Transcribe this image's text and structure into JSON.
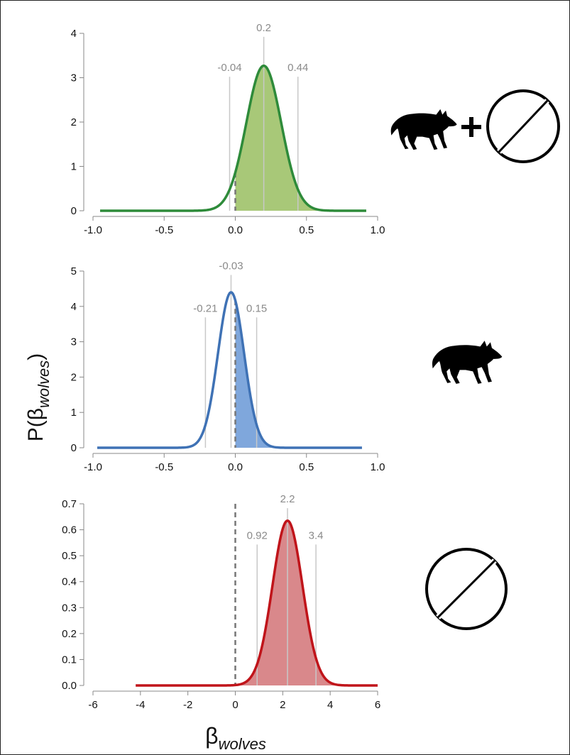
{
  "y_axis_title": {
    "symbol": "P(β",
    "subscript": "wolves",
    "close": ")"
  },
  "x_axis_title": {
    "symbol": "β",
    "subscript": "wolves"
  },
  "chart_data": [
    {
      "type": "area",
      "xlim": [
        -1.0,
        1.0
      ],
      "ylim": [
        0,
        4
      ],
      "x_ticks": [
        -1.0,
        -0.5,
        0.0,
        0.5,
        1.0
      ],
      "x_tick_labels": [
        "-1.0",
        "-0.5",
        "0.0",
        "0.5",
        "1.0"
      ],
      "y_ticks": [
        0,
        1,
        2,
        3,
        4
      ],
      "y_tick_labels": [
        "0",
        "1",
        "2",
        "3",
        "4"
      ],
      "curve": {
        "x_range": [
          -0.95,
          0.92
        ],
        "mean": 0.2,
        "peak": 3.27,
        "lower": -0.04,
        "upper": 0.44
      },
      "shade_from": 0,
      "reference_line": 0,
      "line_color": "#2e8b3a",
      "fill_color": "#a8c878",
      "annotations": [
        {
          "x": -0.04,
          "label": "-0.04",
          "level": 3.15
        },
        {
          "x": 0.2,
          "label": "0.2",
          "level": 4.05
        },
        {
          "x": 0.44,
          "label": "0.44",
          "level": 3.15
        }
      ],
      "icons": [
        "wolf-icon",
        "plus-icon",
        "no-wolf-icon"
      ]
    },
    {
      "type": "area",
      "xlim": [
        -1.0,
        1.0
      ],
      "ylim": [
        0,
        5
      ],
      "x_ticks": [
        -1.0,
        -0.5,
        0.0,
        0.5,
        1.0
      ],
      "x_tick_labels": [
        "-1.0",
        "-0.5",
        "0.0",
        "0.5",
        "1.0"
      ],
      "y_ticks": [
        0,
        1,
        2,
        3,
        4,
        5
      ],
      "y_tick_labels": [
        "0",
        "1",
        "2",
        "3",
        "4",
        "5"
      ],
      "curve": {
        "x_range": [
          -0.97,
          0.89
        ],
        "mean": -0.03,
        "peak": 4.4,
        "lower": -0.21,
        "upper": 0.15
      },
      "shade_from": 0,
      "reference_line": 0,
      "line_color": "#3f72b5",
      "fill_color": "#7fa7dc",
      "annotations": [
        {
          "x": -0.21,
          "label": "-0.21",
          "level": 3.85
        },
        {
          "x": -0.03,
          "label": "-0.03",
          "level": 5.05
        },
        {
          "x": 0.15,
          "label": "0.15",
          "level": 3.85
        }
      ],
      "icons": [
        "wolf-icon"
      ]
    },
    {
      "type": "area",
      "xlim": [
        -6,
        6
      ],
      "ylim": [
        0,
        0.7
      ],
      "x_ticks": [
        -6,
        -4,
        -2,
        0,
        2,
        4,
        6
      ],
      "x_tick_labels": [
        "-6",
        "-4",
        "-2",
        "0",
        "2",
        "4",
        "6"
      ],
      "y_ticks": [
        0,
        0.1,
        0.2,
        0.3,
        0.4,
        0.5,
        0.6,
        0.7
      ],
      "y_tick_labels": [
        "0.0",
        "0.1",
        "0.2",
        "0.3",
        "0.4",
        "0.5",
        "0.6",
        "0.7"
      ],
      "curve": {
        "x_range": [
          -4.2,
          6
        ],
        "mean": 2.2,
        "peak": 0.635,
        "lower": 0.92,
        "upper": 3.4
      },
      "shade_from": 0,
      "reference_line": 0,
      "line_color": "#c0141a",
      "fill_color": "#d9888b",
      "annotations": [
        {
          "x": 0.92,
          "label": "0.92",
          "level": 0.565
        },
        {
          "x": 2.2,
          "label": "2.2",
          "level": 0.705
        },
        {
          "x": 3.4,
          "label": "3.4",
          "level": 0.565
        }
      ],
      "icons": [
        "no-wolf-icon"
      ]
    }
  ]
}
